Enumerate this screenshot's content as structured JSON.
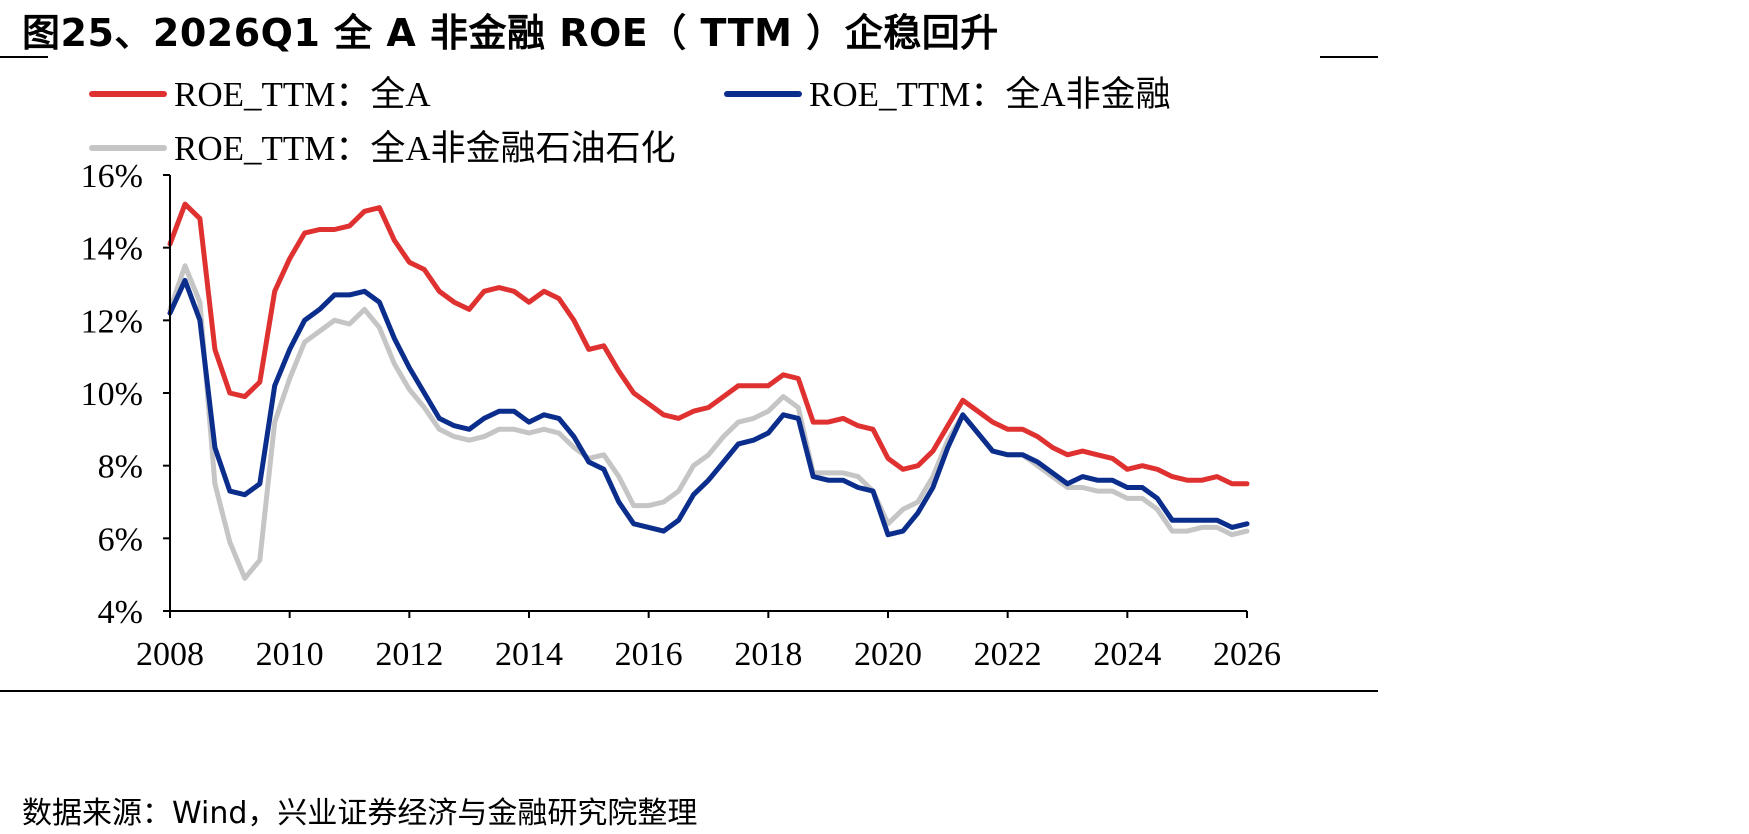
{
  "title": "图25、2026Q1 全 A 非金融 ROE（ TTM ）企稳回升",
  "source_note": "数据来源：Wind，兴业证券经济与金融研究院整理",
  "chart_data": {
    "type": "line",
    "title": "",
    "xlabel": "",
    "ylabel": "",
    "x_ticks": [
      "2008",
      "2010",
      "2012",
      "2014",
      "2016",
      "2018",
      "2020",
      "2022",
      "2024",
      "2026"
    ],
    "y_ticks": [
      "4%",
      "6%",
      "8%",
      "10%",
      "12%",
      "14%",
      "16%"
    ],
    "xlim": [
      2008,
      2026
    ],
    "ylim": [
      4,
      16
    ],
    "legend_position": "top",
    "grid": false,
    "series": [
      {
        "name": "ROE_TTM：全A",
        "color": "#e03131",
        "x": [
          2008.0,
          2008.25,
          2008.5,
          2008.75,
          2009.0,
          2009.25,
          2009.5,
          2009.75,
          2010.0,
          2010.25,
          2010.5,
          2010.75,
          2011.0,
          2011.25,
          2011.5,
          2011.75,
          2012.0,
          2012.25,
          2012.5,
          2012.75,
          2013.0,
          2013.25,
          2013.5,
          2013.75,
          2014.0,
          2014.25,
          2014.5,
          2014.75,
          2015.0,
          2015.25,
          2015.5,
          2015.75,
          2016.0,
          2016.25,
          2016.5,
          2016.75,
          2017.0,
          2017.25,
          2017.5,
          2017.75,
          2018.0,
          2018.25,
          2018.5,
          2018.75,
          2019.0,
          2019.25,
          2019.5,
          2019.75,
          2020.0,
          2020.25,
          2020.5,
          2020.75,
          2021.0,
          2021.25,
          2021.5,
          2021.75,
          2022.0,
          2022.25,
          2022.5,
          2022.75,
          2023.0,
          2023.25,
          2023.5,
          2023.75,
          2024.0,
          2024.25,
          2024.5,
          2024.75,
          2025.0,
          2025.25,
          2025.5,
          2025.75,
          2026.0
        ],
        "y": [
          14.1,
          15.2,
          14.8,
          11.2,
          10.0,
          9.9,
          10.3,
          12.8,
          13.7,
          14.4,
          14.5,
          14.5,
          14.6,
          15.0,
          15.1,
          14.2,
          13.6,
          13.4,
          12.8,
          12.5,
          12.3,
          12.8,
          12.9,
          12.8,
          12.5,
          12.8,
          12.6,
          12.0,
          11.2,
          11.3,
          10.6,
          10.0,
          9.7,
          9.4,
          9.3,
          9.5,
          9.6,
          9.9,
          10.2,
          10.2,
          10.2,
          10.5,
          10.4,
          9.2,
          9.2,
          9.3,
          9.1,
          9.0,
          8.2,
          7.9,
          8.0,
          8.4,
          9.1,
          9.8,
          9.5,
          9.2,
          9.0,
          9.0,
          8.8,
          8.5,
          8.3,
          8.4,
          8.3,
          8.2,
          7.9,
          8.0,
          7.9,
          7.7,
          7.6,
          7.6,
          7.7,
          7.5,
          7.5
        ]
      },
      {
        "name": "ROE_TTM：全A非金融",
        "color": "#0b2d8c",
        "x": [
          2008.0,
          2008.25,
          2008.5,
          2008.75,
          2009.0,
          2009.25,
          2009.5,
          2009.75,
          2010.0,
          2010.25,
          2010.5,
          2010.75,
          2011.0,
          2011.25,
          2011.5,
          2011.75,
          2012.0,
          2012.25,
          2012.5,
          2012.75,
          2013.0,
          2013.25,
          2013.5,
          2013.75,
          2014.0,
          2014.25,
          2014.5,
          2014.75,
          2015.0,
          2015.25,
          2015.5,
          2015.75,
          2016.0,
          2016.25,
          2016.5,
          2016.75,
          2017.0,
          2017.25,
          2017.5,
          2017.75,
          2018.0,
          2018.25,
          2018.5,
          2018.75,
          2019.0,
          2019.25,
          2019.5,
          2019.75,
          2020.0,
          2020.25,
          2020.5,
          2020.75,
          2021.0,
          2021.25,
          2021.5,
          2021.75,
          2022.0,
          2022.25,
          2022.5,
          2022.75,
          2023.0,
          2023.25,
          2023.5,
          2023.75,
          2024.0,
          2024.25,
          2024.5,
          2024.75,
          2025.0,
          2025.25,
          2025.5,
          2025.75,
          2026.0
        ],
        "y": [
          12.2,
          13.1,
          12.0,
          8.5,
          7.3,
          7.2,
          7.5,
          10.2,
          11.2,
          12.0,
          12.3,
          12.7,
          12.7,
          12.8,
          12.5,
          11.5,
          10.7,
          10.0,
          9.3,
          9.1,
          9.0,
          9.3,
          9.5,
          9.5,
          9.2,
          9.4,
          9.3,
          8.8,
          8.1,
          7.9,
          7.0,
          6.4,
          6.3,
          6.2,
          6.5,
          7.2,
          7.6,
          8.1,
          8.6,
          8.7,
          8.9,
          9.4,
          9.3,
          7.7,
          7.6,
          7.6,
          7.4,
          7.3,
          6.1,
          6.2,
          6.7,
          7.4,
          8.5,
          9.4,
          8.9,
          8.4,
          8.3,
          8.3,
          8.1,
          7.8,
          7.5,
          7.7,
          7.6,
          7.6,
          7.4,
          7.4,
          7.1,
          6.5,
          6.5,
          6.5,
          6.5,
          6.3,
          6.4
        ]
      },
      {
        "name": "ROE_TTM：全A非金融石油石化",
        "color": "#c5c5c5",
        "x": [
          2008.0,
          2008.25,
          2008.5,
          2008.75,
          2009.0,
          2009.25,
          2009.5,
          2009.75,
          2010.0,
          2010.25,
          2010.5,
          2010.75,
          2011.0,
          2011.25,
          2011.5,
          2011.75,
          2012.0,
          2012.25,
          2012.5,
          2012.75,
          2013.0,
          2013.25,
          2013.5,
          2013.75,
          2014.0,
          2014.25,
          2014.5,
          2014.75,
          2015.0,
          2015.25,
          2015.5,
          2015.75,
          2016.0,
          2016.25,
          2016.5,
          2016.75,
          2017.0,
          2017.25,
          2017.5,
          2017.75,
          2018.0,
          2018.25,
          2018.5,
          2018.75,
          2019.0,
          2019.25,
          2019.5,
          2019.75,
          2020.0,
          2020.25,
          2020.5,
          2020.75,
          2021.0,
          2021.25,
          2021.5,
          2021.75,
          2022.0,
          2022.25,
          2022.5,
          2022.75,
          2023.0,
          2023.25,
          2023.5,
          2023.75,
          2024.0,
          2024.25,
          2024.5,
          2024.75,
          2025.0,
          2025.25,
          2025.5,
          2025.75,
          2026.0
        ],
        "y": [
          12.3,
          13.5,
          12.5,
          7.5,
          5.9,
          4.9,
          5.4,
          9.2,
          10.4,
          11.4,
          11.7,
          12.0,
          11.9,
          12.3,
          11.8,
          10.8,
          10.1,
          9.6,
          9.0,
          8.8,
          8.7,
          8.8,
          9.0,
          9.0,
          8.9,
          9.0,
          8.9,
          8.5,
          8.2,
          8.3,
          7.7,
          6.9,
          6.9,
          7.0,
          7.3,
          8.0,
          8.3,
          8.8,
          9.2,
          9.3,
          9.5,
          9.9,
          9.6,
          7.8,
          7.8,
          7.8,
          7.7,
          7.3,
          6.4,
          6.8,
          7.0,
          7.7,
          8.7,
          9.4,
          8.9,
          8.4,
          8.3,
          8.3,
          8.0,
          7.7,
          7.4,
          7.4,
          7.3,
          7.3,
          7.1,
          7.1,
          6.8,
          6.2,
          6.2,
          6.3,
          6.3,
          6.1,
          6.2
        ]
      }
    ]
  }
}
